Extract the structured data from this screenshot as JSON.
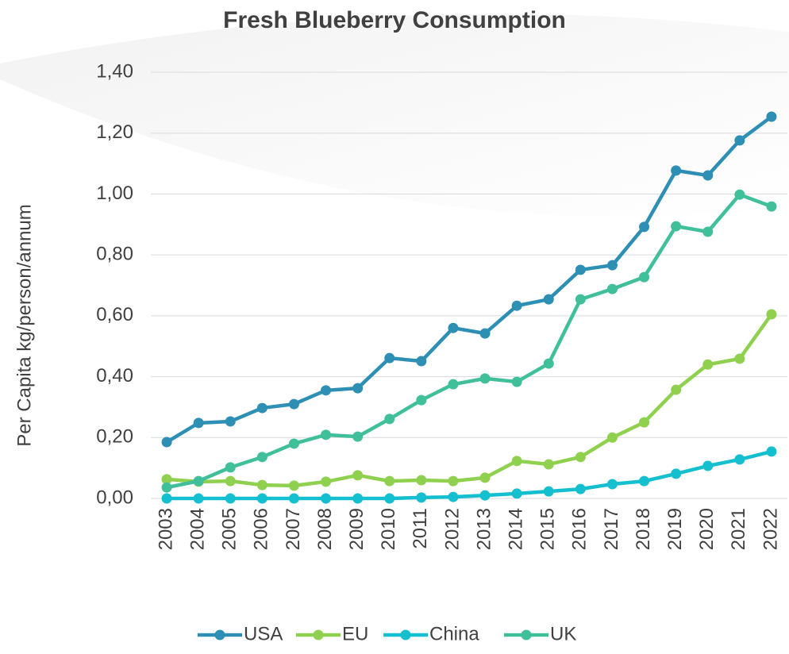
{
  "chart_data": {
    "type": "line",
    "title": "Fresh Blueberry Consumption",
    "y_label": "Per Capita kg/person/annum",
    "categories": [
      "2003",
      "2004",
      "2005",
      "2006",
      "2007",
      "2008",
      "2009",
      "2010",
      "2011",
      "2012",
      "2013",
      "2014",
      "2015",
      "2016",
      "2017",
      "2018",
      "2019",
      "2020",
      "2021",
      "2022"
    ],
    "series": [
      {
        "name": "USA",
        "color": "#2e8fb5",
        "values": [
          0.185,
          0.248,
          0.253,
          0.297,
          0.31,
          0.355,
          0.362,
          0.461,
          0.451,
          0.56,
          0.542,
          0.633,
          0.654,
          0.751,
          0.766,
          0.892,
          1.077,
          1.061,
          1.176,
          1.254
        ]
      },
      {
        "name": "EU",
        "color": "#8fd14f",
        "values": [
          0.063,
          0.055,
          0.057,
          0.044,
          0.042,
          0.055,
          0.076,
          0.057,
          0.06,
          0.057,
          0.068,
          0.123,
          0.112,
          0.136,
          0.2,
          0.25,
          0.357,
          0.44,
          0.459,
          0.605
        ]
      },
      {
        "name": "China",
        "color": "#14bfd0",
        "values": [
          0,
          0,
          0,
          0,
          0,
          0,
          0,
          0,
          0.003,
          0.005,
          0.01,
          0.016,
          0.023,
          0.031,
          0.047,
          0.057,
          0.081,
          0.107,
          0.128,
          0.154
        ]
      },
      {
        "name": "UK",
        "color": "#3fbf9a",
        "values": [
          0.036,
          0.057,
          0.102,
          0.136,
          0.18,
          0.209,
          0.203,
          0.261,
          0.323,
          0.375,
          0.394,
          0.383,
          0.443,
          0.654,
          0.688,
          0.727,
          0.894,
          0.876,
          0.998,
          0.959
        ]
      }
    ],
    "ylim": [
      0,
      1.4
    ],
    "yticks": [
      {
        "value": 0,
        "label": "0,00"
      },
      {
        "value": 0.2,
        "label": "0,20"
      },
      {
        "value": 0.4,
        "label": "0,40"
      },
      {
        "value": 0.6,
        "label": "0,60"
      },
      {
        "value": 0.8,
        "label": "0,80"
      },
      {
        "value": 1,
        "label": "1,00"
      },
      {
        "value": 1.2,
        "label": "1,20"
      },
      {
        "value": 1.4,
        "label": "1,40"
      }
    ],
    "grid": true,
    "legend": "bottom"
  }
}
